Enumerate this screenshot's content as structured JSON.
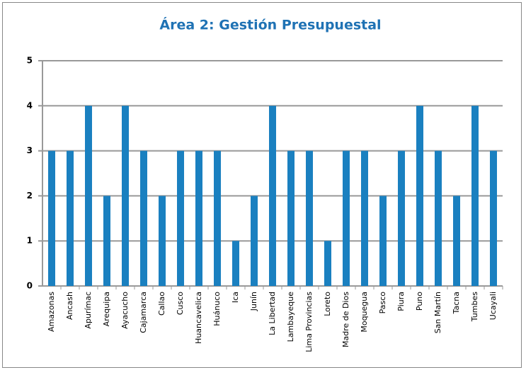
{
  "chart_data": {
    "type": "bar",
    "title": "Área 2: Gestión Presupuestal",
    "categories": [
      "Amazonas",
      "Ancash",
      "Apurímac",
      "Arequipa",
      "Ayacucho",
      "Cajamarca",
      "Callao",
      "Cusco",
      "Huancavelica",
      "Huánuco",
      "Ica",
      "Junín",
      "La Libertad",
      "Lambayeque",
      "Lima Provincias",
      "Loreto",
      "Madre de Dios",
      "Moquegua",
      "Pasco",
      "Piura",
      "Puno",
      "San Martín",
      "Tacna",
      "Tumbes",
      "Ucayali"
    ],
    "values": [
      3,
      3,
      4,
      2,
      4,
      3,
      2,
      3,
      3,
      3,
      1,
      2,
      4,
      3,
      3,
      1,
      3,
      3,
      2,
      3,
      4,
      3,
      2,
      4,
      3
    ],
    "color": "#1a80c0",
    "ylim": [
      0,
      5
    ],
    "yticks": [
      0,
      1,
      2,
      3,
      4,
      5
    ],
    "grid": true
  }
}
